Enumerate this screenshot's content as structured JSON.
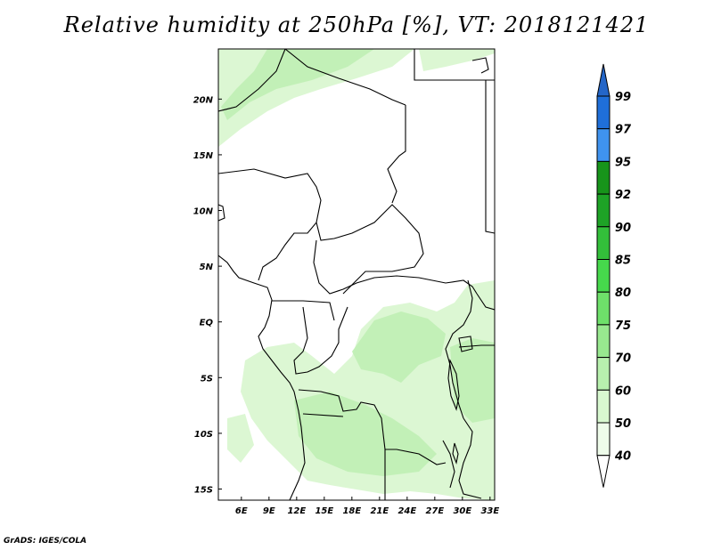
{
  "title": "Relative humidity at 250hPa [%], VT: 2018121421",
  "footer": "GrADS: IGES/COLA",
  "colors": {
    "background": "#ffffff",
    "border": "#000000",
    "coastline": "#000000"
  },
  "axes": {
    "x_labels": [
      "6E",
      "9E",
      "12E",
      "15E",
      "18E",
      "21E",
      "24E",
      "27E",
      "30E",
      "33E"
    ],
    "y_labels": [
      "20N",
      "15N",
      "10N",
      "5N",
      "EQ",
      "5S",
      "10S",
      "15S"
    ],
    "lon_range": [
      3.5,
      33.5
    ],
    "lat_range": [
      -16,
      24.5
    ]
  },
  "colorbar": {
    "levels": [
      "99",
      "97",
      "95",
      "92",
      "90",
      "85",
      "80",
      "75",
      "70",
      "60",
      "50",
      "40"
    ],
    "colors": [
      "#1f6fd9",
      "#3f93ef",
      "#17941a",
      "#1ea326",
      "#33bf3a",
      "#46d84c",
      "#6ee06a",
      "#98e88f",
      "#b8f0ae",
      "#d8f8d0",
      "#eefcea"
    ],
    "top_color": "#2466c8",
    "bottom_color": "#ffffff"
  },
  "humidity_fill": {
    "light": "#dcf7d3",
    "mid": "#c2f0b7",
    "strong": "#aeeaa1"
  }
}
